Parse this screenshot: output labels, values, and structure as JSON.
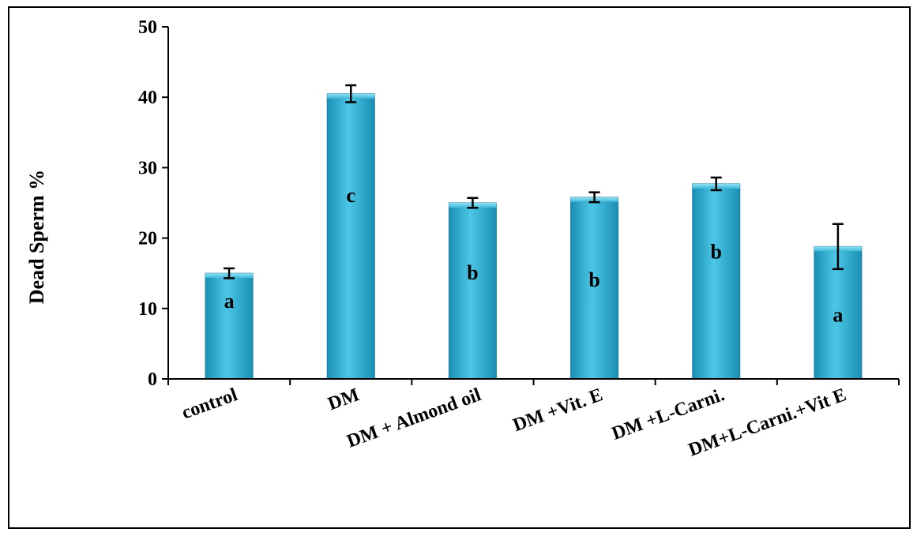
{
  "chart_data": {
    "type": "bar",
    "title": "",
    "xlabel": "",
    "ylabel": "Dead Sperm %",
    "ylim": [
      0,
      50
    ],
    "yticks": [
      0,
      10,
      20,
      30,
      40,
      50
    ],
    "grid": false,
    "legend": "none",
    "bar_color": "#3fb7d8",
    "categories": [
      "control",
      "DM",
      "DM + Almond oil",
      "DM +Vit. E",
      "DM +L-Carni.",
      "DM+L-Carni.+Vit E"
    ],
    "values": [
      15.0,
      40.5,
      25.0,
      25.8,
      27.7,
      18.8
    ],
    "errors": [
      0.7,
      1.2,
      0.7,
      0.7,
      0.9,
      3.2
    ],
    "significance_labels": [
      "a",
      "c",
      "b",
      "b",
      "b",
      "a"
    ],
    "significance_label_y": [
      11,
      26,
      15,
      14,
      18,
      9
    ]
  }
}
